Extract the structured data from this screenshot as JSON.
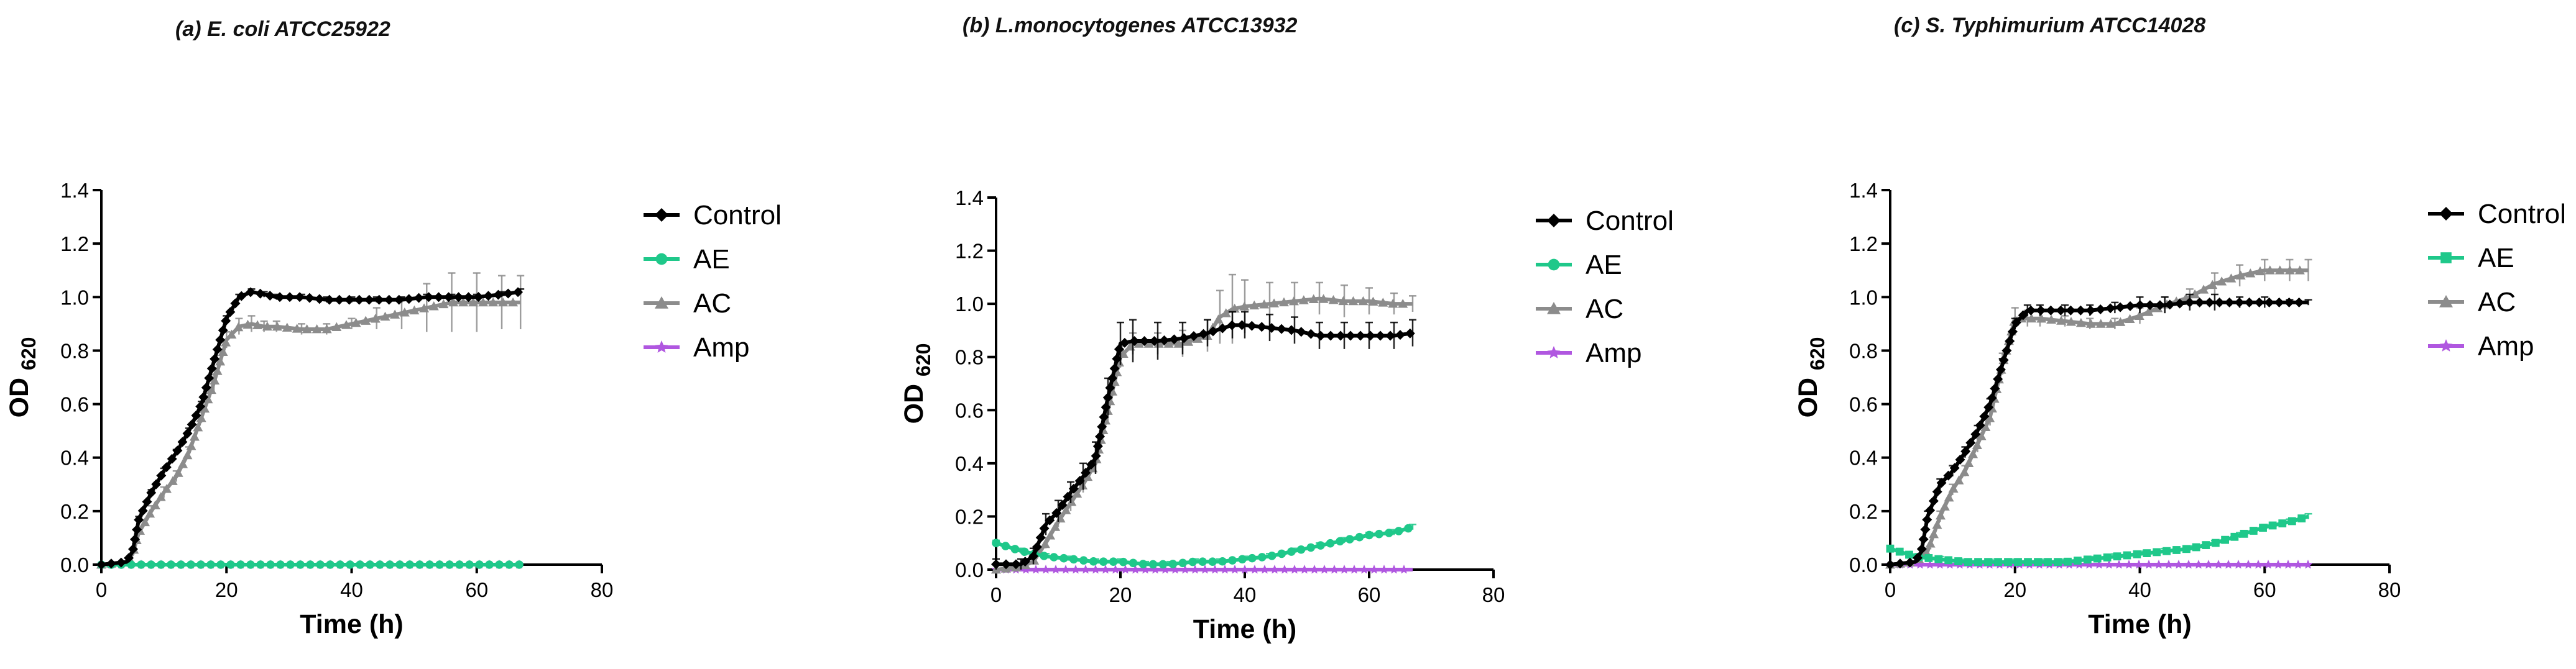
{
  "chart_data": [
    {
      "type": "line",
      "title": "(a) E. coli ATCC25922",
      "xlabel": "Time (h)",
      "ylabel": "OD620",
      "xlim": [
        0,
        80
      ],
      "ylim": [
        0,
        1.4
      ],
      "xticks": [
        "0",
        "20",
        "40",
        "60",
        "80"
      ],
      "yticks": [
        "0.0",
        "0.2",
        "0.4",
        "0.6",
        "0.8",
        "1.0",
        "1.2",
        "1.4"
      ],
      "legend_position": "right",
      "series": [
        {
          "name": "Control",
          "color": "#000000",
          "marker": "diamond",
          "x": [
            0,
            4,
            5,
            6,
            8,
            10,
            12,
            14,
            16,
            18,
            20,
            22,
            24,
            26,
            28,
            32,
            36,
            40,
            44,
            48,
            52,
            56,
            60,
            64,
            67
          ],
          "y": [
            0.0,
            0.01,
            0.05,
            0.17,
            0.27,
            0.35,
            0.42,
            0.5,
            0.6,
            0.76,
            0.92,
            1.0,
            1.02,
            1.01,
            1.0,
            1.0,
            0.99,
            0.99,
            0.99,
            0.99,
            1.0,
            1.0,
            1.0,
            1.01,
            1.02
          ],
          "err": [
            0,
            0,
            0,
            0.01,
            0.01,
            0.01,
            0.01,
            0.01,
            0.01,
            0.01,
            0.01,
            0.01,
            0.01,
            0.01,
            0.01,
            0.01,
            0.01,
            0.01,
            0.01,
            0.01,
            0.01,
            0.01,
            0.01,
            0.01,
            0.01
          ]
        },
        {
          "name": "AE",
          "color": "#1fc88a",
          "marker": "circle",
          "x": [
            0,
            10,
            20,
            30,
            40,
            50,
            60,
            67
          ],
          "y": [
            0.0,
            0.0,
            0.0,
            0.0,
            0.0,
            0.0,
            0.0,
            0.0
          ],
          "err": [
            0,
            0,
            0,
            0,
            0,
            0,
            0,
            0
          ]
        },
        {
          "name": "AC",
          "color": "#8c8c8c",
          "marker": "triangle",
          "x": [
            0,
            4,
            5,
            6,
            8,
            10,
            12,
            14,
            16,
            18,
            20,
            22,
            24,
            26,
            28,
            32,
            36,
            40,
            44,
            48,
            52,
            56,
            60,
            64,
            67
          ],
          "y": [
            0.0,
            0.01,
            0.04,
            0.12,
            0.2,
            0.27,
            0.33,
            0.42,
            0.55,
            0.68,
            0.84,
            0.89,
            0.9,
            0.89,
            0.89,
            0.88,
            0.88,
            0.9,
            0.92,
            0.94,
            0.96,
            0.98,
            0.98,
            0.98,
            0.98
          ],
          "err": [
            0,
            0,
            0,
            0.01,
            0.02,
            0.02,
            0.02,
            0.02,
            0.02,
            0.03,
            0.03,
            0.03,
            0.03,
            0.02,
            0.02,
            0.02,
            0.02,
            0.02,
            0.04,
            0.06,
            0.09,
            0.11,
            0.11,
            0.1,
            0.1
          ]
        },
        {
          "name": "Amp",
          "color": "#b057e0",
          "marker": "star",
          "x": [
            0,
            10,
            20,
            30,
            40,
            50,
            60,
            67
          ],
          "y": [
            0.0,
            0.0,
            0.0,
            0.0,
            0.0,
            0.0,
            0.0,
            0.0
          ],
          "err": [
            0,
            0,
            0,
            0,
            0,
            0,
            0,
            0
          ]
        }
      ]
    },
    {
      "type": "line",
      "title": "(b) L.monocytogenes ATCC13932",
      "xlabel": "Time (h)",
      "ylabel": "OD620",
      "xlim": [
        0,
        80
      ],
      "ylim": [
        0,
        1.4
      ],
      "xticks": [
        "0",
        "20",
        "40",
        "60",
        "80"
      ],
      "yticks": [
        "0.0",
        "0.2",
        "0.4",
        "0.6",
        "0.8",
        "1.0",
        "1.2",
        "1.4"
      ],
      "legend_position": "right",
      "series": [
        {
          "name": "Control",
          "color": "#000000",
          "marker": "diamond",
          "x": [
            0,
            4,
            6,
            8,
            10,
            12,
            14,
            16,
            18,
            20,
            22,
            26,
            30,
            34,
            38,
            40,
            44,
            48,
            52,
            56,
            60,
            64,
            67
          ],
          "y": [
            0.02,
            0.02,
            0.05,
            0.17,
            0.22,
            0.29,
            0.35,
            0.42,
            0.65,
            0.85,
            0.86,
            0.86,
            0.87,
            0.89,
            0.92,
            0.92,
            0.91,
            0.9,
            0.88,
            0.88,
            0.88,
            0.88,
            0.89
          ],
          "err": [
            0.02,
            0.02,
            0.03,
            0.04,
            0.04,
            0.04,
            0.05,
            0.06,
            0.07,
            0.08,
            0.08,
            0.07,
            0.06,
            0.05,
            0.05,
            0.05,
            0.05,
            0.05,
            0.05,
            0.05,
            0.05,
            0.05,
            0.05
          ]
        },
        {
          "name": "AE",
          "color": "#1fc88a",
          "marker": "circle",
          "x": [
            0,
            4,
            8,
            12,
            16,
            20,
            24,
            28,
            32,
            36,
            40,
            44,
            48,
            52,
            56,
            60,
            64,
            67
          ],
          "y": [
            0.1,
            0.07,
            0.05,
            0.04,
            0.03,
            0.03,
            0.02,
            0.02,
            0.03,
            0.03,
            0.04,
            0.05,
            0.07,
            0.09,
            0.11,
            0.13,
            0.14,
            0.16
          ],
          "err": [
            0.01,
            0.01,
            0.01,
            0.01,
            0.01,
            0.01,
            0.01,
            0.01,
            0.01,
            0.01,
            0.01,
            0.01,
            0.01,
            0.01,
            0.01,
            0.01,
            0.01,
            0.01
          ]
        },
        {
          "name": "AC",
          "color": "#8c8c8c",
          "marker": "triangle",
          "x": [
            0,
            4,
            6,
            8,
            10,
            12,
            14,
            16,
            18,
            20,
            22,
            26,
            30,
            34,
            36,
            38,
            40,
            44,
            48,
            52,
            56,
            60,
            64,
            67
          ],
          "y": [
            0.0,
            0.01,
            0.03,
            0.1,
            0.18,
            0.25,
            0.32,
            0.4,
            0.6,
            0.8,
            0.85,
            0.85,
            0.85,
            0.88,
            0.95,
            0.98,
            0.99,
            1.0,
            1.01,
            1.02,
            1.01,
            1.01,
            1.0,
            1.0
          ],
          "err": [
            0,
            0,
            0.01,
            0.02,
            0.02,
            0.03,
            0.03,
            0.03,
            0.04,
            0.04,
            0.04,
            0.04,
            0.05,
            0.06,
            0.1,
            0.13,
            0.1,
            0.08,
            0.07,
            0.06,
            0.06,
            0.05,
            0.04,
            0.03
          ]
        },
        {
          "name": "Amp",
          "color": "#b057e0",
          "marker": "star",
          "x": [
            0,
            10,
            20,
            30,
            40,
            50,
            60,
            67
          ],
          "y": [
            0.0,
            0.0,
            0.0,
            0.0,
            0.0,
            0.0,
            0.0,
            0.0
          ],
          "err": [
            0,
            0,
            0,
            0,
            0,
            0,
            0,
            0
          ]
        }
      ]
    },
    {
      "type": "line",
      "title": "(c) S. Typhimurium ATCC14028",
      "xlabel": "Time (h)",
      "ylabel": "OD620",
      "xlim": [
        0,
        80
      ],
      "ylim": [
        0,
        1.4
      ],
      "xticks": [
        "0",
        "20",
        "40",
        "60",
        "80"
      ],
      "yticks": [
        "0.0",
        "0.2",
        "0.4",
        "0.6",
        "0.8",
        "1.0",
        "1.2",
        "1.4"
      ],
      "legend_position": "right",
      "series": [
        {
          "name": "Control",
          "color": "#000000",
          "marker": "diamond",
          "x": [
            0,
            4,
            5,
            6,
            8,
            10,
            12,
            14,
            16,
            18,
            20,
            22,
            24,
            28,
            32,
            36,
            40,
            44,
            48,
            52,
            56,
            60,
            64,
            67
          ],
          "y": [
            0.0,
            0.01,
            0.05,
            0.18,
            0.3,
            0.35,
            0.42,
            0.5,
            0.6,
            0.75,
            0.9,
            0.95,
            0.95,
            0.95,
            0.95,
            0.96,
            0.97,
            0.97,
            0.98,
            0.98,
            0.98,
            0.98,
            0.98,
            0.98
          ],
          "err": [
            0,
            0,
            0.01,
            0.02,
            0.02,
            0.02,
            0.02,
            0.02,
            0.02,
            0.02,
            0.02,
            0.02,
            0.02,
            0.02,
            0.02,
            0.02,
            0.03,
            0.03,
            0.03,
            0.03,
            0.02,
            0.02,
            0.01,
            0.01
          ]
        },
        {
          "name": "AE",
          "color": "#1fc88a",
          "marker": "square",
          "x": [
            0,
            4,
            8,
            12,
            16,
            20,
            24,
            28,
            32,
            36,
            40,
            44,
            48,
            52,
            56,
            60,
            64,
            67
          ],
          "y": [
            0.06,
            0.03,
            0.02,
            0.01,
            0.01,
            0.01,
            0.01,
            0.01,
            0.02,
            0.03,
            0.04,
            0.05,
            0.06,
            0.08,
            0.11,
            0.14,
            0.16,
            0.18
          ],
          "err": [
            0.01,
            0.01,
            0.01,
            0.01,
            0.01,
            0.01,
            0.01,
            0.01,
            0.01,
            0.01,
            0.01,
            0.01,
            0.01,
            0.01,
            0.01,
            0.01,
            0.01,
            0.01
          ]
        },
        {
          "name": "AC",
          "color": "#8c8c8c",
          "marker": "triangle",
          "x": [
            0,
            4,
            6,
            8,
            10,
            12,
            14,
            16,
            18,
            20,
            22,
            24,
            28,
            32,
            36,
            40,
            44,
            48,
            52,
            56,
            60,
            64,
            67
          ],
          "y": [
            0.0,
            0.01,
            0.05,
            0.18,
            0.28,
            0.35,
            0.45,
            0.55,
            0.75,
            0.92,
            0.92,
            0.92,
            0.91,
            0.9,
            0.9,
            0.93,
            0.97,
            1.0,
            1.05,
            1.08,
            1.1,
            1.1,
            1.1
          ],
          "err": [
            0,
            0,
            0.01,
            0.02,
            0.02,
            0.02,
            0.03,
            0.03,
            0.04,
            0.04,
            0.03,
            0.03,
            0.02,
            0.02,
            0.02,
            0.03,
            0.03,
            0.03,
            0.04,
            0.04,
            0.04,
            0.04,
            0.04
          ]
        },
        {
          "name": "Amp",
          "color": "#b057e0",
          "marker": "star",
          "x": [
            0,
            10,
            20,
            30,
            40,
            50,
            60,
            67
          ],
          "y": [
            0.0,
            0.0,
            0.0,
            0.0,
            0.0,
            0.0,
            0.0,
            0.0
          ],
          "err": [
            0,
            0,
            0,
            0,
            0,
            0,
            0,
            0
          ]
        }
      ]
    }
  ]
}
